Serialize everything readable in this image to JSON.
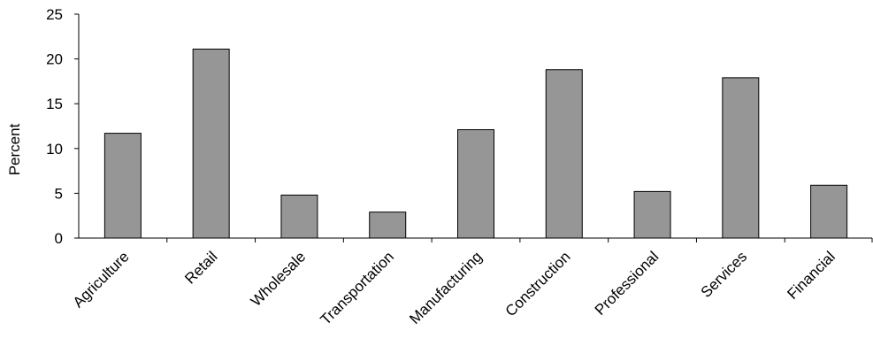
{
  "chart_data": {
    "type": "bar",
    "categories": [
      "Agriculture",
      "Retail",
      "Wholesale",
      "Transportation",
      "Manufacturing",
      "Construction",
      "Professional",
      "Services",
      "Financial"
    ],
    "values": [
      11.7,
      21.1,
      4.8,
      2.9,
      12.1,
      18.8,
      5.2,
      17.9,
      5.9
    ],
    "yticks": [
      "0",
      "5",
      "10",
      "15",
      "20",
      "25"
    ],
    "ylim": [
      0,
      25
    ],
    "title": "",
    "xlabel": "",
    "ylabel": "Percent",
    "grid": false,
    "legend": "none",
    "bar_color": "#969696"
  }
}
